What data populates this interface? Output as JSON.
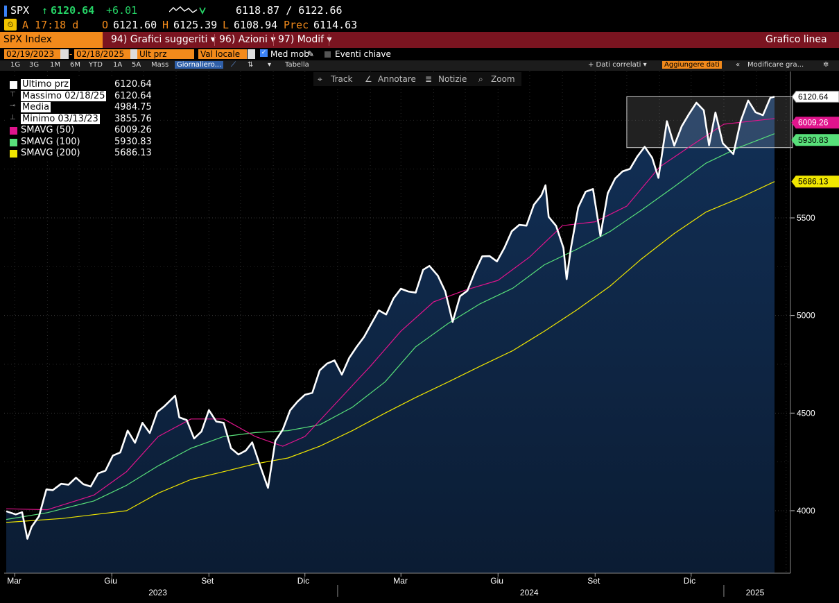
{
  "header": {
    "ticker": "SPX",
    "arrow": "↑",
    "last": "6120.64",
    "change": "+6.01",
    "bid_ask": "6118.87 / 6122.66",
    "time_label": "A 17:18 d",
    "open_label": "O",
    "open": "6121.60",
    "high_label": "H",
    "high": "6125.39",
    "low_label": "L",
    "low": "6108.94",
    "prev_label": "Prec",
    "prev": "6114.63"
  },
  "menubar": {
    "security": "SPX Index",
    "items": [
      "94) Grafici suggeriti ▾",
      "96) Azioni ▾",
      "97) Modif ▾"
    ],
    "chart_type": "Grafico linea"
  },
  "controls": {
    "start_date": "02/19/2023",
    "end_date": "02/18/2025",
    "field": "Ult prz",
    "currency": "Val locale",
    "moving_avg": "Med mob",
    "events": "Eventi chiave"
  },
  "periods": {
    "items": [
      "1G",
      "3G",
      "1M",
      "6M",
      "YTD",
      "1A",
      "5A",
      "Mass"
    ],
    "frequency": "Giornaliero...",
    "table": "Tabella",
    "related": "+ Dati correlati ▾",
    "add_data": "Aggiungere dati",
    "modify": "Modificare gra..."
  },
  "toolbar": {
    "track": "Track",
    "annotate": "Annotare",
    "news": "Notizie",
    "zoom": "Zoom"
  },
  "legend": [
    {
      "name": "Ultimo prz",
      "value": "6120.64",
      "color": "#ffffff"
    },
    {
      "name": "Massimo 02/18/25",
      "value": "6120.64",
      "color": ""
    },
    {
      "name": "Media",
      "value": "4984.75",
      "color": ""
    },
    {
      "name": "Minimo 03/13/23",
      "value": "3855.76",
      "color": ""
    },
    {
      "name": "SMAVG (50)",
      "value": "6009.26",
      "color": "#e0148c"
    },
    {
      "name": "SMAVG (100)",
      "value": "5930.83",
      "color": "#58e07a"
    },
    {
      "name": "SMAVG (200)",
      "value": "5686.13",
      "color": "#f0e600"
    }
  ],
  "chart_data": {
    "type": "line",
    "x_start": "2023-02-19",
    "x_end": "2025-02-18",
    "ylim": [
      3680,
      6250
    ],
    "yticks": [
      4000,
      4500,
      5000,
      5500
    ],
    "month_labels": [
      {
        "date": "2023-03-01",
        "label": "Mar"
      },
      {
        "date": "2023-06-01",
        "label": "Giu"
      },
      {
        "date": "2023-09-01",
        "label": "Set"
      },
      {
        "date": "2023-12-01",
        "label": "Dic"
      },
      {
        "date": "2024-03-01",
        "label": "Mar"
      },
      {
        "date": "2024-06-01",
        "label": "Giu"
      },
      {
        "date": "2024-09-01",
        "label": "Set"
      },
      {
        "date": "2024-12-01",
        "label": "Dic"
      }
    ],
    "year_labels": [
      {
        "date": "2023-07-15",
        "label": "2023"
      },
      {
        "date": "2024-07-01",
        "label": "2024"
      },
      {
        "date": "2025-01-31",
        "label": "2025"
      }
    ],
    "year_dividers": [
      "2024-01-01",
      "2025-01-01"
    ],
    "series": [
      {
        "name": "Ultimo prz",
        "color": "#ffffff",
        "width": 2.6,
        "last_label": "6120.64",
        "points": [
          [
            "2023-02-21",
            3997
          ],
          [
            "2023-03-02",
            3981
          ],
          [
            "2023-03-08",
            3992
          ],
          [
            "2023-03-13",
            3856
          ],
          [
            "2023-03-17",
            3917
          ],
          [
            "2023-03-24",
            3971
          ],
          [
            "2023-03-31",
            4109
          ],
          [
            "2023-04-06",
            4105
          ],
          [
            "2023-04-14",
            4138
          ],
          [
            "2023-04-21",
            4133
          ],
          [
            "2023-04-28",
            4169
          ],
          [
            "2023-05-05",
            4136
          ],
          [
            "2023-05-12",
            4124
          ],
          [
            "2023-05-19",
            4191
          ],
          [
            "2023-05-26",
            4205
          ],
          [
            "2023-06-02",
            4282
          ],
          [
            "2023-06-09",
            4298
          ],
          [
            "2023-06-16",
            4410
          ],
          [
            "2023-06-23",
            4348
          ],
          [
            "2023-06-30",
            4450
          ],
          [
            "2023-07-07",
            4398
          ],
          [
            "2023-07-14",
            4505
          ],
          [
            "2023-07-21",
            4536
          ],
          [
            "2023-07-31",
            4589
          ],
          [
            "2023-08-04",
            4478
          ],
          [
            "2023-08-11",
            4464
          ],
          [
            "2023-08-18",
            4370
          ],
          [
            "2023-08-25",
            4406
          ],
          [
            "2023-09-01",
            4515
          ],
          [
            "2023-09-08",
            4457
          ],
          [
            "2023-09-15",
            4450
          ],
          [
            "2023-09-22",
            4320
          ],
          [
            "2023-09-29",
            4288
          ],
          [
            "2023-10-06",
            4308
          ],
          [
            "2023-10-12",
            4350
          ],
          [
            "2023-10-20",
            4224
          ],
          [
            "2023-10-27",
            4117
          ],
          [
            "2023-11-03",
            4358
          ],
          [
            "2023-11-10",
            4415
          ],
          [
            "2023-11-17",
            4514
          ],
          [
            "2023-11-24",
            4559
          ],
          [
            "2023-12-01",
            4594
          ],
          [
            "2023-12-08",
            4604
          ],
          [
            "2023-12-15",
            4719
          ],
          [
            "2023-12-22",
            4754
          ],
          [
            "2023-12-29",
            4770
          ],
          [
            "2024-01-05",
            4697
          ],
          [
            "2024-01-12",
            4783
          ],
          [
            "2024-01-19",
            4839
          ],
          [
            "2024-01-26",
            4890
          ],
          [
            "2024-02-02",
            4958
          ],
          [
            "2024-02-09",
            5026
          ],
          [
            "2024-02-16",
            5005
          ],
          [
            "2024-02-23",
            5088
          ],
          [
            "2024-03-01",
            5137
          ],
          [
            "2024-03-08",
            5123
          ],
          [
            "2024-03-15",
            5117
          ],
          [
            "2024-03-22",
            5234
          ],
          [
            "2024-03-28",
            5254
          ],
          [
            "2024-04-05",
            5204
          ],
          [
            "2024-04-12",
            5123
          ],
          [
            "2024-04-19",
            4967
          ],
          [
            "2024-04-26",
            5099
          ],
          [
            "2024-05-03",
            5127
          ],
          [
            "2024-05-10",
            5222
          ],
          [
            "2024-05-17",
            5303
          ],
          [
            "2024-05-24",
            5304
          ],
          [
            "2024-05-31",
            5277
          ],
          [
            "2024-06-07",
            5346
          ],
          [
            "2024-06-14",
            5431
          ],
          [
            "2024-06-21",
            5464
          ],
          [
            "2024-06-28",
            5460
          ],
          [
            "2024-07-05",
            5567
          ],
          [
            "2024-07-12",
            5615
          ],
          [
            "2024-07-16",
            5667
          ],
          [
            "2024-07-19",
            5505
          ],
          [
            "2024-07-26",
            5459
          ],
          [
            "2024-08-02",
            5346
          ],
          [
            "2024-08-05",
            5186
          ],
          [
            "2024-08-09",
            5344
          ],
          [
            "2024-08-16",
            5554
          ],
          [
            "2024-08-23",
            5634
          ],
          [
            "2024-08-30",
            5648
          ],
          [
            "2024-09-06",
            5408
          ],
          [
            "2024-09-13",
            5626
          ],
          [
            "2024-09-20",
            5702
          ],
          [
            "2024-09-27",
            5738
          ],
          [
            "2024-10-04",
            5751
          ],
          [
            "2024-10-11",
            5815
          ],
          [
            "2024-10-18",
            5864
          ],
          [
            "2024-10-25",
            5808
          ],
          [
            "2024-10-31",
            5705
          ],
          [
            "2024-11-08",
            5995
          ],
          [
            "2024-11-15",
            5870
          ],
          [
            "2024-11-22",
            5969
          ],
          [
            "2024-11-29",
            6032
          ],
          [
            "2024-12-06",
            6090
          ],
          [
            "2024-12-13",
            6051
          ],
          [
            "2024-12-18",
            5872
          ],
          [
            "2024-12-24",
            6040
          ],
          [
            "2024-12-31",
            5882
          ],
          [
            "2025-01-10",
            5827
          ],
          [
            "2025-01-17",
            5997
          ],
          [
            "2025-01-24",
            6101
          ],
          [
            "2025-01-31",
            6041
          ],
          [
            "2025-02-07",
            6026
          ],
          [
            "2025-02-14",
            6115
          ],
          [
            "2025-02-18",
            6121
          ]
        ]
      },
      {
        "name": "SMAVG (50)",
        "color": "#e0148c",
        "width": 1.2,
        "last_label": "6009.26",
        "points": [
          [
            "2023-02-21",
            4010
          ],
          [
            "2023-04-01",
            4005
          ],
          [
            "2023-05-15",
            4080
          ],
          [
            "2023-06-15",
            4200
          ],
          [
            "2023-07-15",
            4380
          ],
          [
            "2023-08-15",
            4470
          ],
          [
            "2023-09-15",
            4470
          ],
          [
            "2023-10-15",
            4380
          ],
          [
            "2023-11-10",
            4330
          ],
          [
            "2023-12-01",
            4380
          ],
          [
            "2024-01-01",
            4560
          ],
          [
            "2024-02-01",
            4740
          ],
          [
            "2024-03-01",
            4920
          ],
          [
            "2024-04-01",
            5070
          ],
          [
            "2024-05-01",
            5130
          ],
          [
            "2024-06-01",
            5180
          ],
          [
            "2024-07-01",
            5300
          ],
          [
            "2024-08-01",
            5460
          ],
          [
            "2024-09-01",
            5480
          ],
          [
            "2024-10-01",
            5560
          ],
          [
            "2024-11-01",
            5760
          ],
          [
            "2024-12-01",
            5870
          ],
          [
            "2025-01-01",
            5980
          ],
          [
            "2025-02-18",
            6009
          ]
        ]
      },
      {
        "name": "SMAVG (100)",
        "color": "#58e07a",
        "width": 1.2,
        "last_label": "5930.83",
        "points": [
          [
            "2023-02-21",
            3955
          ],
          [
            "2023-04-01",
            3990
          ],
          [
            "2023-05-15",
            4050
          ],
          [
            "2023-06-15",
            4130
          ],
          [
            "2023-07-15",
            4230
          ],
          [
            "2023-08-15",
            4320
          ],
          [
            "2023-09-15",
            4380
          ],
          [
            "2023-10-15",
            4400
          ],
          [
            "2023-11-15",
            4410
          ],
          [
            "2023-12-15",
            4440
          ],
          [
            "2024-01-15",
            4530
          ],
          [
            "2024-02-15",
            4660
          ],
          [
            "2024-03-15",
            4840
          ],
          [
            "2024-04-15",
            4960
          ],
          [
            "2024-05-15",
            5060
          ],
          [
            "2024-06-15",
            5140
          ],
          [
            "2024-07-15",
            5260
          ],
          [
            "2024-08-15",
            5340
          ],
          [
            "2024-09-15",
            5430
          ],
          [
            "2024-10-15",
            5540
          ],
          [
            "2024-11-15",
            5660
          ],
          [
            "2024-12-15",
            5780
          ],
          [
            "2025-01-15",
            5860
          ],
          [
            "2025-02-18",
            5931
          ]
        ]
      },
      {
        "name": "SMAVG (200)",
        "color": "#f0e600",
        "width": 1.2,
        "last_label": "5686.13",
        "points": [
          [
            "2023-02-21",
            3940
          ],
          [
            "2023-04-15",
            3960
          ],
          [
            "2023-06-15",
            4000
          ],
          [
            "2023-07-15",
            4090
          ],
          [
            "2023-08-15",
            4160
          ],
          [
            "2023-09-15",
            4200
          ],
          [
            "2023-10-15",
            4240
          ],
          [
            "2023-11-15",
            4270
          ],
          [
            "2023-12-15",
            4330
          ],
          [
            "2024-01-15",
            4410
          ],
          [
            "2024-02-15",
            4500
          ],
          [
            "2024-03-15",
            4580
          ],
          [
            "2024-04-15",
            4660
          ],
          [
            "2024-05-15",
            4740
          ],
          [
            "2024-06-15",
            4820
          ],
          [
            "2024-07-15",
            4920
          ],
          [
            "2024-08-15",
            5030
          ],
          [
            "2024-09-15",
            5150
          ],
          [
            "2024-10-15",
            5290
          ],
          [
            "2024-11-15",
            5420
          ],
          [
            "2024-12-15",
            5530
          ],
          [
            "2025-01-15",
            5600
          ],
          [
            "2025-02-18",
            5686
          ]
        ]
      }
    ],
    "range_box": {
      "start": "2024-10-01",
      "end": "2025-02-18",
      "top": 6120.64,
      "bottom": 5860
    }
  },
  "colors": {
    "brand_orange": "#f28a1b",
    "menubar": "#7a1420",
    "area_fill": "#0e2340",
    "up": "#25d366"
  }
}
